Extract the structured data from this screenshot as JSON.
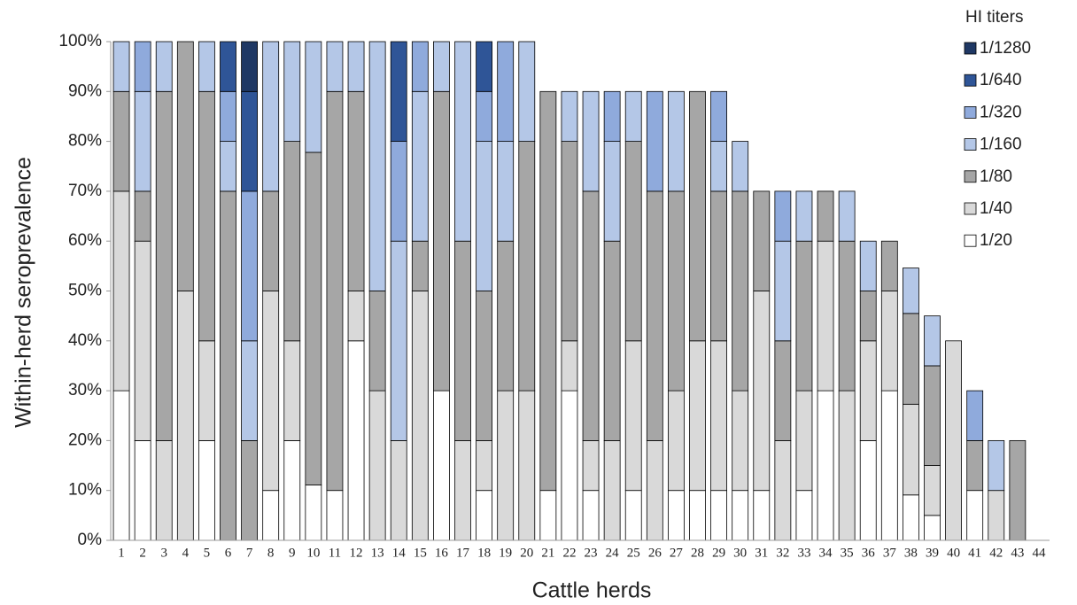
{
  "chart_data": {
    "type": "stacked_bar",
    "x_label": "Cattle herds",
    "y_label": "Within-herd seroprevalence",
    "legend_title": "HI titers",
    "legend_position": "upper right",
    "categories": [
      1,
      2,
      3,
      4,
      5,
      6,
      7,
      8,
      9,
      10,
      11,
      12,
      13,
      14,
      15,
      16,
      17,
      18,
      19,
      20,
      21,
      22,
      23,
      24,
      25,
      26,
      27,
      28,
      29,
      30,
      31,
      32,
      33,
      34,
      35,
      36,
      37,
      38,
      39,
      40,
      41,
      42,
      43,
      44
    ],
    "ylim": [
      0,
      100
    ],
    "yticks": [
      {
        "value": 0,
        "label": "0%"
      },
      {
        "value": 10,
        "label": "10%"
      },
      {
        "value": 20,
        "label": "20%"
      },
      {
        "value": 30,
        "label": "30%"
      },
      {
        "value": 40,
        "label": "40%"
      },
      {
        "value": 50,
        "label": "50%"
      },
      {
        "value": 60,
        "label": "60%"
      },
      {
        "value": 70,
        "label": "70%"
      },
      {
        "value": 80,
        "label": "80%"
      },
      {
        "value": 90,
        "label": "90%"
      },
      {
        "value": 100,
        "label": "100%"
      }
    ],
    "series": [
      {
        "name": "1/20",
        "color": "#ffffff",
        "values": [
          30,
          20,
          0,
          0,
          20,
          0,
          0,
          10,
          20,
          11.1,
          10,
          40,
          0,
          0,
          0,
          30,
          0,
          10,
          0,
          0,
          10,
          30,
          10,
          0,
          10,
          0,
          10,
          10,
          10,
          10,
          10,
          0,
          10,
          30,
          0,
          20,
          30,
          9.1,
          5,
          0,
          10,
          0,
          0,
          0
        ]
      },
      {
        "name": "1/40",
        "color": "#d9d9d9",
        "values": [
          40,
          40,
          20,
          50,
          20,
          0,
          0,
          40,
          20,
          0,
          0,
          10,
          30,
          20,
          50,
          0,
          20,
          10,
          30,
          30,
          0,
          10,
          10,
          20,
          30,
          20,
          20,
          30,
          30,
          20,
          40,
          20,
          20,
          30,
          30,
          20,
          20,
          18.2,
          10,
          40,
          0,
          10,
          0,
          0
        ]
      },
      {
        "name": "1/80",
        "color": "#a6a6a6",
        "values": [
          20,
          10,
          70,
          50,
          50,
          70,
          20,
          20,
          40,
          66.7,
          80,
          40,
          20,
          0,
          10,
          60,
          40,
          30,
          30,
          50,
          80,
          40,
          50,
          40,
          40,
          50,
          40,
          50,
          30,
          40,
          20,
          20,
          30,
          10,
          30,
          10,
          10,
          18.2,
          20,
          0,
          10,
          0,
          20,
          0
        ]
      },
      {
        "name": "1/160",
        "color": "#b4c7e7",
        "values": [
          10,
          20,
          10,
          0,
          10,
          10,
          20,
          30,
          20,
          22.2,
          10,
          10,
          50,
          40,
          30,
          10,
          40,
          30,
          20,
          20,
          0,
          10,
          20,
          20,
          10,
          0,
          20,
          0,
          10,
          10,
          0,
          20,
          10,
          0,
          10,
          10,
          0,
          9.1,
          10,
          0,
          0,
          10,
          0,
          0
        ]
      },
      {
        "name": "1/320",
        "color": "#8faadc",
        "values": [
          0,
          10,
          0,
          0,
          0,
          10,
          30,
          0,
          0,
          0,
          0,
          0,
          0,
          20,
          10,
          0,
          0,
          10,
          20,
          0,
          0,
          0,
          0,
          10,
          0,
          20,
          0,
          0,
          10,
          0,
          0,
          10,
          0,
          0,
          0,
          0,
          0,
          0,
          0,
          0,
          10,
          0,
          0,
          0
        ]
      },
      {
        "name": "1/640",
        "color": "#2f5597",
        "values": [
          0,
          0,
          0,
          0,
          0,
          10,
          20,
          0,
          0,
          0,
          0,
          0,
          0,
          20,
          0,
          0,
          0,
          10,
          0,
          0,
          0,
          0,
          0,
          0,
          0,
          0,
          0,
          0,
          0,
          0,
          0,
          0,
          0,
          0,
          0,
          0,
          0,
          0,
          0,
          0,
          0,
          0,
          0,
          0
        ]
      },
      {
        "name": "1/1280",
        "color": "#1f3864",
        "values": [
          0,
          0,
          0,
          0,
          0,
          0,
          10,
          0,
          0,
          0,
          0,
          0,
          0,
          0,
          0,
          0,
          0,
          0,
          0,
          0,
          0,
          0,
          0,
          0,
          0,
          0,
          0,
          0,
          0,
          0,
          0,
          0,
          0,
          0,
          0,
          0,
          0,
          0,
          0,
          0,
          0,
          0,
          0,
          0
        ]
      }
    ]
  }
}
